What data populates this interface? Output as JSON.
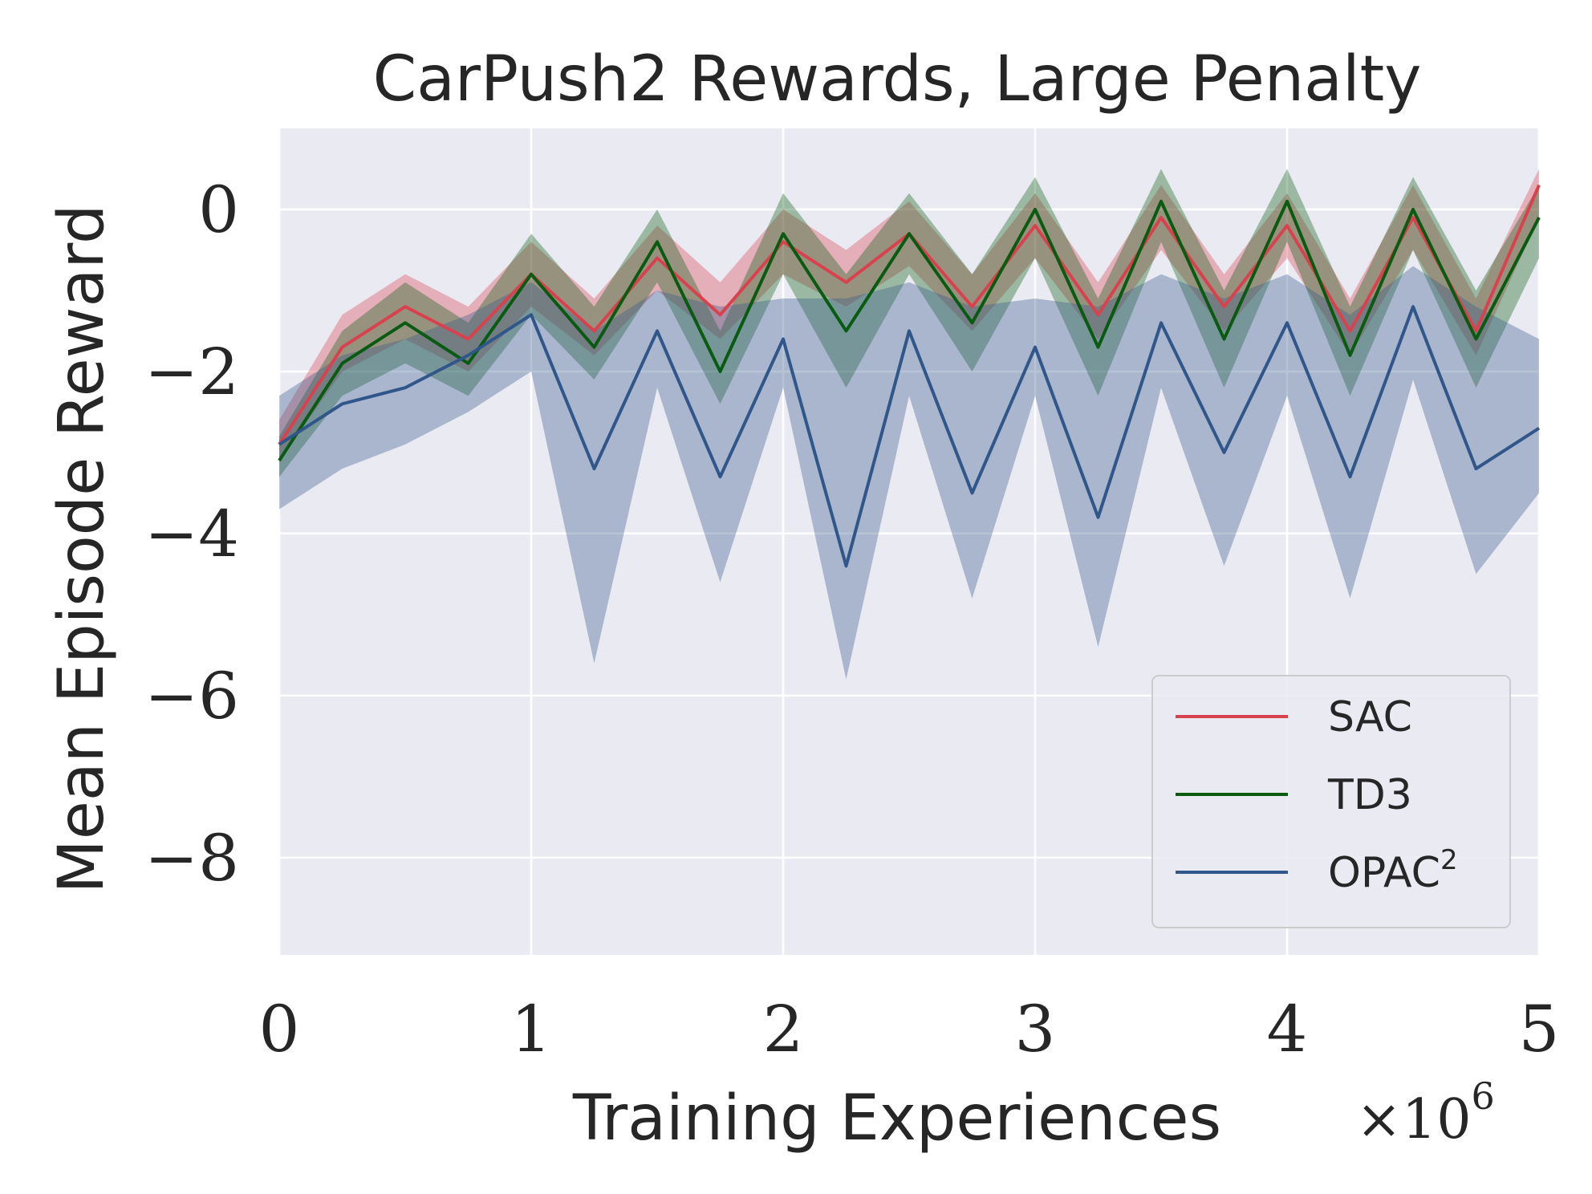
{
  "chart_data": {
    "type": "line",
    "title": "CarPush2 Rewards, Large Penalty",
    "xlabel": "Training Experiences",
    "ylabel": "Mean Episode Reward",
    "x_multiplier": "×10",
    "x_multiplier_exp": "6",
    "xlim": [
      0,
      5
    ],
    "ylim": [
      -9.2,
      1.0
    ],
    "xticks": [
      0,
      1,
      2,
      3,
      4,
      5
    ],
    "xtick_labels": [
      "0",
      "1",
      "2",
      "3",
      "4",
      "5"
    ],
    "yticks": [
      0,
      -2,
      -4,
      -6,
      -8
    ],
    "ytick_labels": [
      "0",
      "−2",
      "−4",
      "−6",
      "−8"
    ],
    "grid": true,
    "legend_position": "lower-right",
    "x": [
      0.0,
      0.25,
      0.5,
      0.75,
      1.0,
      1.25,
      1.5,
      1.75,
      2.0,
      2.25,
      2.5,
      2.75,
      3.0,
      3.25,
      3.5,
      3.75,
      4.0,
      4.25,
      4.5,
      4.75,
      5.0
    ],
    "series": [
      {
        "name": "SAC",
        "color": "#d9414e",
        "mean": [
          -2.9,
          -1.7,
          -1.2,
          -1.6,
          -0.8,
          -1.5,
          -0.6,
          -1.3,
          -0.4,
          -0.9,
          -0.3,
          -1.2,
          -0.2,
          -1.3,
          -0.1,
          -1.2,
          -0.2,
          -1.5,
          -0.1,
          -1.5,
          0.3
        ],
        "lower": [
          -3.1,
          -2.0,
          -1.6,
          -2.0,
          -1.2,
          -1.8,
          -1.0,
          -1.6,
          -0.8,
          -1.2,
          -0.7,
          -1.5,
          -0.6,
          -1.6,
          -0.5,
          -1.5,
          -0.6,
          -1.8,
          -0.5,
          -1.8,
          -0.1
        ],
        "upper": [
          -2.6,
          -1.3,
          -0.8,
          -1.2,
          -0.4,
          -1.1,
          -0.2,
          -0.9,
          -0.0,
          -0.5,
          0.1,
          -0.8,
          0.2,
          -0.9,
          0.3,
          -0.8,
          0.2,
          -1.1,
          0.3,
          -1.1,
          0.5
        ]
      },
      {
        "name": "TD3",
        "color": "#0a5b12",
        "mean": [
          -3.1,
          -1.9,
          -1.4,
          -1.9,
          -0.8,
          -1.7,
          -0.4,
          -2.0,
          -0.3,
          -1.5,
          -0.3,
          -1.4,
          -0.0,
          -1.7,
          0.1,
          -1.6,
          0.1,
          -1.8,
          0.0,
          -1.6,
          -0.1
        ],
        "lower": [
          -3.3,
          -2.3,
          -1.9,
          -2.3,
          -1.3,
          -2.1,
          -0.9,
          -2.4,
          -0.8,
          -2.2,
          -0.8,
          -2.0,
          -0.6,
          -2.3,
          -0.4,
          -2.2,
          -0.4,
          -2.3,
          -0.5,
          -2.2,
          -0.6
        ],
        "upper": [
          -2.8,
          -1.5,
          -0.9,
          -1.4,
          -0.3,
          -1.2,
          0.0,
          -1.5,
          0.2,
          -0.8,
          0.2,
          -0.8,
          0.4,
          -1.1,
          0.5,
          -1.0,
          0.5,
          -1.2,
          0.4,
          -1.0,
          0.3
        ]
      },
      {
        "name": "OPAC",
        "superscript": "2",
        "color": "#30568a",
        "mean": [
          -2.9,
          -2.4,
          -2.2,
          -1.8,
          -1.3,
          -3.2,
          -1.5,
          -3.3,
          -1.6,
          -4.4,
          -1.5,
          -3.5,
          -1.7,
          -3.8,
          -1.4,
          -3.0,
          -1.4,
          -3.3,
          -1.2,
          -3.2,
          -2.7
        ],
        "lower": [
          -3.7,
          -3.2,
          -2.9,
          -2.5,
          -2.0,
          -5.6,
          -2.2,
          -4.6,
          -2.2,
          -5.8,
          -2.3,
          -4.8,
          -2.3,
          -5.4,
          -2.2,
          -4.4,
          -2.3,
          -4.8,
          -2.1,
          -4.5,
          -3.5
        ],
        "upper": [
          -2.3,
          -1.8,
          -1.6,
          -1.3,
          -0.9,
          -1.5,
          -1.0,
          -1.2,
          -1.1,
          -1.1,
          -0.9,
          -1.2,
          -1.1,
          -1.2,
          -0.8,
          -1.1,
          -0.8,
          -1.3,
          -0.7,
          -1.2,
          -1.6
        ]
      }
    ]
  }
}
